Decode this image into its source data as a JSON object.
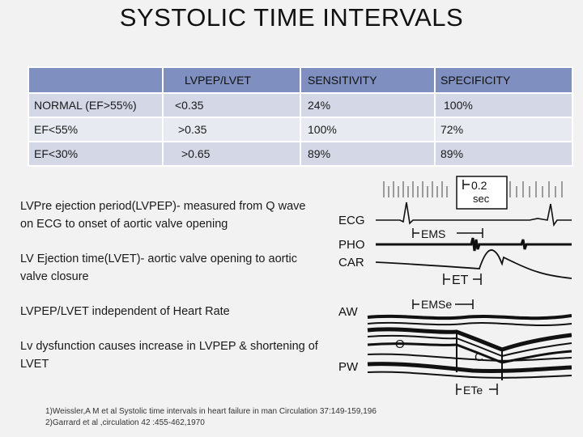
{
  "title": "SYSTOLIC TIME INTERVALS",
  "table": {
    "headers": [
      "",
      "LVPEP/LVET",
      "SENSITIVITY",
      "SPECIFICITY"
    ],
    "rows": [
      [
        "NORMAL (EF>55%)",
        "<0.35",
        "24%",
        "100%"
      ],
      [
        "EF<55%",
        ">0.35",
        "100%",
        "72%"
      ],
      [
        "EF<30%",
        ">0.65",
        "89%",
        "89%"
      ]
    ]
  },
  "definitions": [
    "LVPre ejection period(LVPEP)- measured from Q wave on ECG to onset of aortic valve opening",
    "LV Ejection time(LVET)- aortic valve opening to aortic  valve closure",
    "LVPEP/LVET independent of Heart Rate",
    "Lv dysfunction causes increase in LVPEP & shortening of LVET"
  ],
  "references": [
    "1)Weissler,A M et al Systolic time intervals in heart failure in man Circulation 37:149-159,196",
    "2)Garrard et al ,circulation 42 :455-462,1970"
  ],
  "figure": {
    "scale_value": "0.2",
    "scale_unit": "sec",
    "labels": {
      "ecg": "ECG",
      "pho": "PHO",
      "car": "CAR",
      "aw": "AW",
      "pw": "PW",
      "ems": "EMS",
      "et": "ET",
      "emse": "EMSe",
      "o": "O",
      "c": "C",
      "ete": "ETe"
    }
  }
}
